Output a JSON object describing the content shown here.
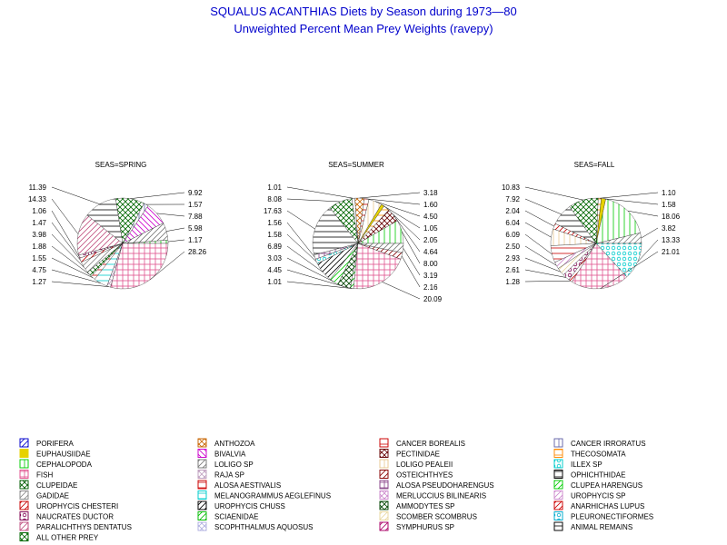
{
  "title": "SQUALUS ACANTHIAS Diets by Season during 1973—80",
  "subtitle": "Unweighted Percent Mean Prey Weights (ravepy)",
  "chart_data": [
    {
      "type": "pie",
      "title": "SEAS=SPRING",
      "slices": [
        {
          "category": "CEPHALOPODA",
          "value": 1.17
        },
        {
          "category": "LOLIGO SP",
          "value": 5.98
        },
        {
          "category": "BIVALVIA",
          "value": 7.88
        },
        {
          "category": "CANCER IRRORATUS",
          "value": 1.57
        },
        {
          "category": "ALL OTHER PREY",
          "value": 9.92
        },
        {
          "category": "ANIMAL REMAINS",
          "value": 11.39
        },
        {
          "category": "PARALICHTHYS DENTATUS",
          "value": 14.33
        },
        {
          "category": "NAUCRATES DUCTOR",
          "value": 1.06
        },
        {
          "category": "UROPHYCIS CHESTERI",
          "value": 1.47
        },
        {
          "category": "GADIDAE",
          "value": 3.98
        },
        {
          "category": "CLUPEIDAE",
          "value": 1.88
        },
        {
          "category": "ALOSA AESTIVALIS",
          "value": 1.55
        },
        {
          "category": "MELANOGRAMMUS AEGLEFINUS",
          "value": 4.75
        },
        {
          "category": "RAJA SP",
          "value": 1.27
        },
        {
          "category": "FISH",
          "value": 28.26
        }
      ]
    },
    {
      "type": "pie",
      "title": "SEAS=SUMMER",
      "slices": [
        {
          "category": "CEPHALOPODA",
          "value": 8.0
        },
        {
          "category": "PECTINIDAE",
          "value": 4.64
        },
        {
          "category": "THECOSOMATA",
          "value": 2.05
        },
        {
          "category": "EUPHAUSIIDAE",
          "value": 1.05
        },
        {
          "category": "LOLIGO PEALEII",
          "value": 4.5
        },
        {
          "category": "CANCER BOREALIS",
          "value": 1.6
        },
        {
          "category": "ANTHOZOA",
          "value": 3.18
        },
        {
          "category": "CANCER IRRORATUS",
          "value": 1.01
        },
        {
          "category": "ALL OTHER PREY",
          "value": 8.08
        },
        {
          "category": "ANIMAL REMAINS",
          "value": 17.63
        },
        {
          "category": "ALOSA PSEUDOHARENGUS",
          "value": 1.56
        },
        {
          "category": "ILLEX SP",
          "value": 1.58
        },
        {
          "category": "UROPHYCIS CHUSS",
          "value": 6.89
        },
        {
          "category": "CLUPEA HARENGUS",
          "value": 3.03
        },
        {
          "category": "AMMODYTES SP",
          "value": 4.45
        },
        {
          "category": "SCIAENIDAE",
          "value": 1.01
        },
        {
          "category": "FISH",
          "value": 20.09
        },
        {
          "category": "OSTEICHTHYES",
          "value": 2.16
        },
        {
          "category": "LOLIGO SP",
          "value": 3.19
        }
      ]
    },
    {
      "type": "pie",
      "title": "SEAS=FALL",
      "slices": [
        {
          "category": "GADIDAE",
          "value": 3.82
        },
        {
          "category": "CEPHALOPODA",
          "value": 18.06
        },
        {
          "category": "EUPHAUSIIDAE",
          "value": 1.58
        },
        {
          "category": "THECOSOMATA",
          "value": 1.1
        },
        {
          "category": "ALL OTHER PREY",
          "value": 10.83
        },
        {
          "category": "ANIMAL REMAINS",
          "value": 7.92
        },
        {
          "category": "ANARHICHAS LUPUS",
          "value": 2.04
        },
        {
          "category": "LOLIGO PEALEII",
          "value": 6.04
        },
        {
          "category": "CANCER BOREALIS",
          "value": 6.09
        },
        {
          "category": "UROPHYCIS SP",
          "value": 2.5
        },
        {
          "category": "SCOMBER SCOMBRUS",
          "value": 2.93
        },
        {
          "category": "NAUCRATES DUCTOR",
          "value": 2.61
        },
        {
          "category": "UROPHYCIS CHESTERI",
          "value": 1.28
        },
        {
          "category": "FISH",
          "value": 21.01
        },
        {
          "category": "ILLEX SP",
          "value": 13.33
        }
      ]
    }
  ],
  "legend": [
    {
      "label": "PORIFERA",
      "color": "#0000cc",
      "pattern": "slash"
    },
    {
      "label": "EUPHAUSIIDAE",
      "color": "#e6d200",
      "pattern": "solid"
    },
    {
      "label": "CEPHALOPODA",
      "color": "#00cc00",
      "pattern": "vertical"
    },
    {
      "label": "FISH",
      "color": "#e0508c",
      "pattern": "crosshatch"
    },
    {
      "label": "CLUPEIDAE",
      "color": "#005a00",
      "pattern": "xhatch"
    },
    {
      "label": "GADIDAE",
      "color": "#888888",
      "pattern": "slash"
    },
    {
      "label": "UROPHYCIS CHESTERI",
      "color": "#c80000",
      "pattern": "slash"
    },
    {
      "label": "NAUCRATES DUCTOR",
      "color": "#800050",
      "pattern": "circle"
    },
    {
      "label": "PARALICHTHYS DENTATUS",
      "color": "#c05080",
      "pattern": "slash"
    },
    {
      "label": "ALL OTHER PREY",
      "color": "#006600",
      "pattern": "xhatch"
    },
    {
      "label": "ANTHOZOA",
      "color": "#c86400",
      "pattern": "xhatch"
    },
    {
      "label": "BIVALVIA",
      "color": "#cc00cc",
      "pattern": "backslash"
    },
    {
      "label": "LOLIGO SP",
      "color": "#777777",
      "pattern": "slash"
    },
    {
      "label": "RAJA SP",
      "color": "#c0a0c0",
      "pattern": "xhatch"
    },
    {
      "label": "ALOSA AESTIVALIS",
      "color": "#cc0000",
      "pattern": "horizontal"
    },
    {
      "label": "MELANOGRAMMUS AEGLEFINUS",
      "color": "#00cccc",
      "pattern": "horizontal"
    },
    {
      "label": "UROPHYCIS CHUSS",
      "color": "#000000",
      "pattern": "slash"
    },
    {
      "label": "SCIAENIDAE",
      "color": "#00bb00",
      "pattern": "slash"
    },
    {
      "label": "SCOPHTHALMUS AQUOSUS",
      "color": "#b0b0e0",
      "pattern": "xhatch"
    },
    {
      "label": "CANCER BOREALIS",
      "color": "#cc0000",
      "pattern": "horizontal"
    },
    {
      "label": "PECTINIDAE",
      "color": "#660000",
      "pattern": "xhatch"
    },
    {
      "label": "LOLIGO PEALEII",
      "color": "#e8c890",
      "pattern": "vertical"
    },
    {
      "label": "OSTEICHTHYES",
      "color": "#880000",
      "pattern": "slash"
    },
    {
      "label": "ALOSA PSEUDOHARENGUS",
      "color": "#884488",
      "pattern": "crosshatch"
    },
    {
      "label": "MERLUCCIUS BILINEARIS",
      "color": "#cc88cc",
      "pattern": "xhatch"
    },
    {
      "label": "AMMODYTES SP",
      "color": "#004400",
      "pattern": "xhatch"
    },
    {
      "label": "SCOMBER SCOMBRUS",
      "color": "#e8d8a0",
      "pattern": "slash"
    },
    {
      "label": "SYMPHURUS SP",
      "color": "#aa0066",
      "pattern": "slash"
    },
    {
      "label": "CANCER IRRORATUS",
      "color": "#6666aa",
      "pattern": "vertical"
    },
    {
      "label": "THECOSOMATA",
      "color": "#ff8800",
      "pattern": "horizontal"
    },
    {
      "label": "ILLEX SP",
      "color": "#00cccc",
      "pattern": "circle"
    },
    {
      "label": "OPHICHTHIDAE",
      "color": "#000000",
      "pattern": "horizontal"
    },
    {
      "label": "CLUPEA HARENGUS",
      "color": "#00cc00",
      "pattern": "slash"
    },
    {
      "label": "UROPHYCIS SP",
      "color": "#cc88cc",
      "pattern": "slash"
    },
    {
      "label": "ANARHICHAS LUPUS",
      "color": "#cc0000",
      "pattern": "slash"
    },
    {
      "label": "PLEURONECTIFORMES",
      "color": "#00aacc",
      "pattern": "circle"
    },
    {
      "label": "ANIMAL REMAINS",
      "color": "#000000",
      "pattern": "horizontal"
    }
  ]
}
